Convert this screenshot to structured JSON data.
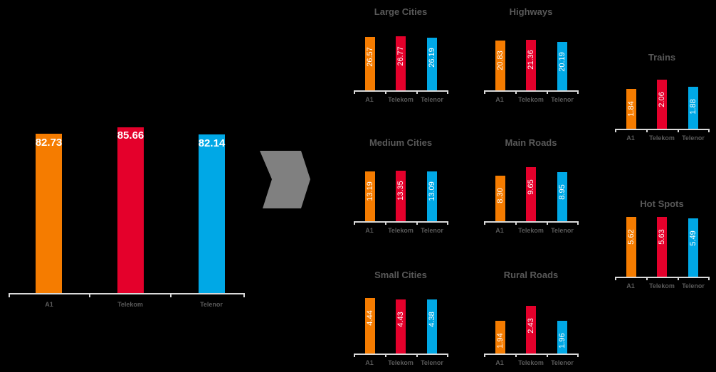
{
  "colors": {
    "A1": "#f57c00",
    "Telekom": "#e4002b",
    "Telenor": "#00a8e6",
    "axis": "#d9d9d9",
    "text": "#595959",
    "arrow": "#808080"
  },
  "chart_data": [
    {
      "type": "bar",
      "title": "",
      "categories": [
        "A1",
        "Telekom",
        "Telenor"
      ],
      "values": [
        82.73,
        85.66,
        82.14
      ]
    },
    {
      "type": "bar",
      "title": "Large Cities",
      "categories": [
        "A1",
        "Telekom",
        "Telenor"
      ],
      "values": [
        26.57,
        26.77,
        26.19
      ]
    },
    {
      "type": "bar",
      "title": "Highways",
      "categories": [
        "A1",
        "Telekom",
        "Telenor"
      ],
      "values": [
        20.83,
        21.36,
        20.19
      ]
    },
    {
      "type": "bar",
      "title": "Trains",
      "categories": [
        "A1",
        "Telekom",
        "Telenor"
      ],
      "values": [
        1.84,
        2.06,
        1.88
      ]
    },
    {
      "type": "bar",
      "title": "Medium Cities",
      "categories": [
        "A1",
        "Telekom",
        "Telenor"
      ],
      "values": [
        13.19,
        13.35,
        13.09
      ]
    },
    {
      "type": "bar",
      "title": "Main Roads",
      "categories": [
        "A1",
        "Telekom",
        "Telenor"
      ],
      "values": [
        8.3,
        9.65,
        8.95
      ]
    },
    {
      "type": "bar",
      "title": "Hot Spots",
      "categories": [
        "A1",
        "Telekom",
        "Telenor"
      ],
      "values": [
        5.62,
        5.63,
        5.49
      ]
    },
    {
      "type": "bar",
      "title": "Small Cities",
      "categories": [
        "A1",
        "Telekom",
        "Telenor"
      ],
      "values": [
        4.44,
        4.43,
        4.38
      ]
    },
    {
      "type": "bar",
      "title": "Rural Roads",
      "categories": [
        "A1",
        "Telekom",
        "Telenor"
      ],
      "values": [
        1.94,
        2.43,
        1.96
      ]
    }
  ],
  "main": {
    "categories": [
      "A1",
      "Telekom",
      "Telenor"
    ],
    "labels": [
      "82.73",
      "85.66",
      "82.14"
    ]
  },
  "small": [
    {
      "title": "Large Cities",
      "labels": [
        "26.57",
        "26.77",
        "26.19"
      ],
      "categories": [
        "A1",
        "Telekom",
        "Telenor"
      ]
    },
    {
      "title": "Highways",
      "labels": [
        "20.83",
        "21.36",
        "20.19"
      ],
      "categories": [
        "A1",
        "Telekom",
        "Telenor"
      ]
    },
    {
      "title": "Trains",
      "labels": [
        "1.84",
        "2.06",
        "1.88"
      ],
      "categories": [
        "A1",
        "Telekom",
        "Telenor"
      ]
    },
    {
      "title": "Medium Cities",
      "labels": [
        "13.19",
        "13.35",
        "13.09"
      ],
      "categories": [
        "A1",
        "Telekom",
        "Telenor"
      ]
    },
    {
      "title": "Main Roads",
      "labels": [
        "8.30",
        "9.65",
        "8.95"
      ],
      "categories": [
        "A1",
        "Telekom",
        "Telenor"
      ]
    },
    {
      "title": "Hot Spots",
      "labels": [
        "5.62",
        "5.63",
        "5.49"
      ],
      "categories": [
        "A1",
        "Telekom",
        "Telenor"
      ]
    },
    {
      "title": "Small Cities",
      "labels": [
        "4.44",
        "4.43",
        "4.38"
      ],
      "categories": [
        "A1",
        "Telekom",
        "Telenor"
      ]
    },
    {
      "title": "Rural Roads",
      "labels": [
        "1.94",
        "2.43",
        "1.96"
      ],
      "categories": [
        "A1",
        "Telekom",
        "Telenor"
      ]
    }
  ]
}
